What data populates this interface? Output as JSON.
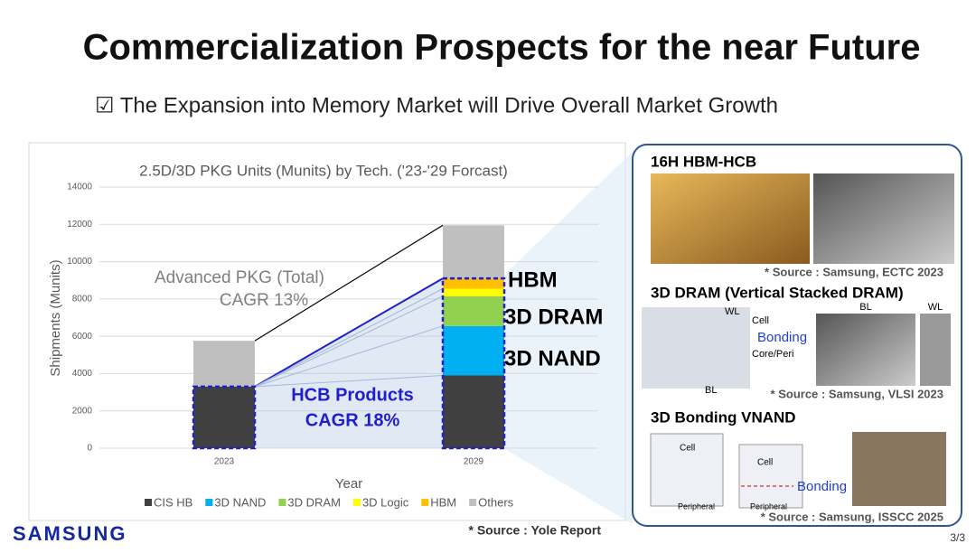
{
  "slide": {
    "title": "Commercialization Prospects for the near Future",
    "subtitle": "☑ The Expansion into Memory Market will Drive Overall Market Growth",
    "chart_source": "* Source : Yole Report",
    "logo": "SAMSUNG",
    "page": "3/3",
    "panel": {
      "sections": [
        {
          "heading": "16H HBM-HCB",
          "source": "* Source : Samsung, ECTC 2023"
        },
        {
          "heading": "3D DRAM (Vertical Stacked DRAM)",
          "source": "* Source : Samsung, VLSI 2023",
          "labels": [
            "WL",
            "Cell",
            "Bonding",
            "Core/Peri",
            "BL",
            "BL",
            "WL"
          ]
        },
        {
          "heading": "3D Bonding VNAND",
          "source": "* Source : Samsung, ISSCC 2025",
          "labels": [
            "Cell",
            "Cell",
            "Bonding",
            "Peripheral",
            "Peripheral"
          ]
        }
      ]
    }
  },
  "chart_data": {
    "type": "stacked_bar",
    "title": "2.5D/3D PKG Units (Munits)  by Tech. ('23-'29 Forcast)",
    "x_label": "Year",
    "y_label": "Shipments (Munits)",
    "categories": [
      "2023",
      "2029"
    ],
    "series": [
      {
        "name": "CIS HB",
        "color": "#404040",
        "values": [
          3300,
          3900
        ]
      },
      {
        "name": "3D NAND",
        "color": "#00b0f0",
        "values": [
          0,
          2650
        ]
      },
      {
        "name": "3D DRAM",
        "color": "#92d050",
        "values": [
          0,
          1600
        ]
      },
      {
        "name": "3D Logic",
        "color": "#ffff00",
        "values": [
          0,
          400
        ]
      },
      {
        "name": "HBM",
        "color": "#ffc000",
        "values": [
          0,
          550
        ]
      },
      {
        "name": "Others",
        "color": "#bfbfbf",
        "values": [
          2460,
          2850
        ]
      }
    ],
    "ylim": [
      0,
      14000
    ],
    "yticks": [
      0,
      2000,
      4000,
      6000,
      8000,
      10000,
      12000,
      14000
    ],
    "grid": true,
    "annotations": [
      "Advanced PKG (Total)",
      "CAGR 13%",
      "HCB Products",
      "CAGR 18%",
      "HBM",
      "3D DRAM",
      "3D NAND"
    ]
  }
}
